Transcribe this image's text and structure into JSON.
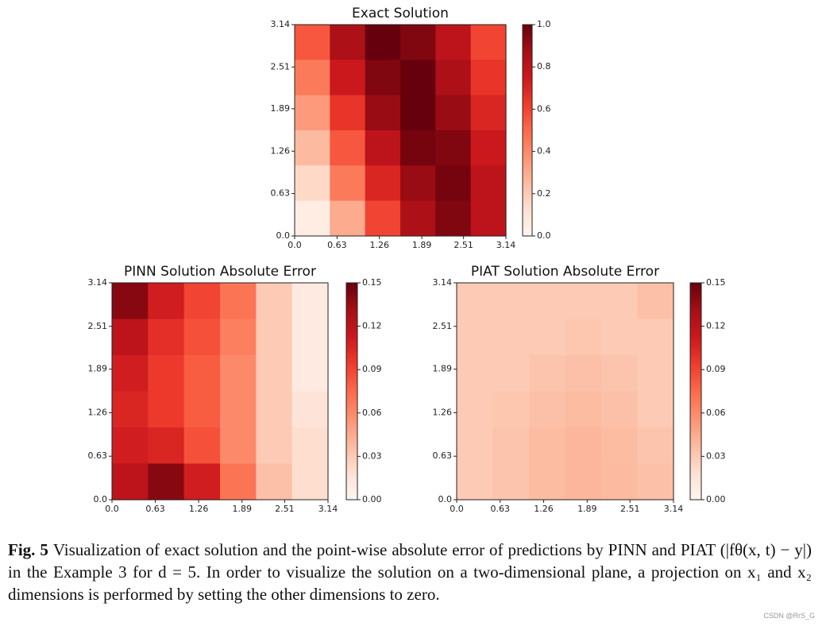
{
  "chart_data": [
    {
      "type": "heatmap",
      "title": "Exact Solution",
      "xlim": [
        0,
        3.14
      ],
      "ylim": [
        0,
        3.14
      ],
      "xticks": [
        {
          "value": 0,
          "label": "0.0"
        },
        0.63,
        1.26,
        1.89,
        2.51,
        3.14
      ],
      "yticks": [
        {
          "value": 0,
          "label": "0.0"
        },
        0.63,
        1.26,
        1.89,
        2.51,
        3.14
      ],
      "z": [
        [
          0.55,
          0.85,
          1.0,
          0.95,
          0.8,
          0.6
        ],
        [
          0.45,
          0.75,
          0.95,
          1.0,
          0.85,
          0.65
        ],
        [
          0.35,
          0.65,
          0.9,
          1.0,
          0.9,
          0.7
        ],
        [
          0.25,
          0.55,
          0.8,
          0.97,
          0.95,
          0.75
        ],
        [
          0.15,
          0.45,
          0.7,
          0.9,
          0.97,
          0.8
        ],
        [
          0.05,
          0.3,
          0.6,
          0.85,
          0.95,
          0.8
        ]
      ],
      "zlim": [
        0,
        1
      ],
      "zticks": [
        {
          "value": 0,
          "label": "0.0"
        },
        0.2,
        0.4,
        0.6,
        0.8,
        {
          "value": 1,
          "label": "1.0"
        }
      ],
      "colormap": [
        "#fff5f0",
        "#fee0d2",
        "#fcbba1",
        "#fc9272",
        "#fb6a4a",
        "#ef3b2c",
        "#cb181d",
        "#a50f15",
        "#67000d"
      ]
    },
    {
      "type": "heatmap",
      "title": "PINN Solution Absolute Error",
      "xlim": [
        0,
        3.14
      ],
      "ylim": [
        0,
        3.14
      ],
      "xticks": [
        {
          "value": 0,
          "label": "0.0"
        },
        0.63,
        1.26,
        1.89,
        2.51,
        3.14
      ],
      "yticks": [
        {
          "value": 0,
          "label": "0.0"
        },
        0.63,
        1.26,
        1.89,
        2.51,
        3.14
      ],
      "z": [
        [
          0.14,
          0.11,
          0.09,
          0.07,
          0.03,
          0.01
        ],
        [
          0.12,
          0.1,
          0.085,
          0.065,
          0.03,
          0.01
        ],
        [
          0.11,
          0.095,
          0.08,
          0.06,
          0.03,
          0.01
        ],
        [
          0.105,
          0.095,
          0.08,
          0.06,
          0.03,
          0.015
        ],
        [
          0.11,
          0.105,
          0.085,
          0.06,
          0.03,
          0.02
        ],
        [
          0.12,
          0.14,
          0.11,
          0.07,
          0.035,
          0.02
        ]
      ],
      "zlim": [
        0,
        0.15
      ],
      "zticks": [
        {
          "value": 0,
          "label": "0.00"
        },
        0.03,
        0.06,
        0.09,
        0.12,
        0.15
      ],
      "colormap": [
        "#fff5f0",
        "#fee0d2",
        "#fcbba1",
        "#fc9272",
        "#fb6a4a",
        "#ef3b2c",
        "#cb181d",
        "#a50f15",
        "#67000d"
      ]
    },
    {
      "type": "heatmap",
      "title": "PIAT Solution Absolute Error",
      "xlim": [
        0,
        3.14
      ],
      "ylim": [
        0,
        3.14
      ],
      "xticks": [
        {
          "value": 0,
          "label": "0.0"
        },
        0.63,
        1.26,
        1.89,
        2.51,
        3.14
      ],
      "yticks": [
        {
          "value": 0,
          "label": "0.0"
        },
        0.63,
        1.26,
        1.89,
        2.51,
        3.14
      ],
      "z": [
        [
          0.03,
          0.03,
          0.03,
          0.03,
          0.03,
          0.035
        ],
        [
          0.03,
          0.03,
          0.03,
          0.032,
          0.03,
          0.03
        ],
        [
          0.03,
          0.03,
          0.033,
          0.035,
          0.033,
          0.03
        ],
        [
          0.03,
          0.032,
          0.035,
          0.037,
          0.035,
          0.03
        ],
        [
          0.03,
          0.033,
          0.037,
          0.04,
          0.037,
          0.033
        ],
        [
          0.03,
          0.033,
          0.037,
          0.04,
          0.038,
          0.035
        ]
      ],
      "zlim": [
        0,
        0.15
      ],
      "zticks": [
        {
          "value": 0,
          "label": "0.00"
        },
        0.03,
        0.06,
        0.09,
        0.12,
        0.15
      ],
      "colormap": [
        "#fff5f0",
        "#fee0d2",
        "#fcbba1",
        "#fc9272",
        "#fb6a4a",
        "#ef3b2c",
        "#cb181d",
        "#a50f15",
        "#67000d"
      ]
    }
  ],
  "caption": {
    "label": "Fig. 5",
    "text": "Visualization of exact solution and the point-wise absolute error of predictions by PINN and PIAT (|fθ(x, t) − y|) in the Example 3 for d = 5. In order to visualize the solution on a two-dimensional plane, a projection on x₁ and x₂ dimensions is performed by setting the other dimensions to zero."
  },
  "watermark": "CSDN @RrS_G"
}
